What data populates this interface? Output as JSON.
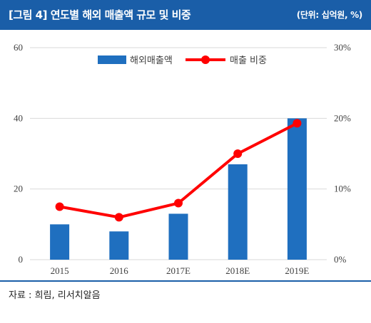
{
  "header": {
    "title": "[그림 4] 연도별 해외 매출액 규모 및 비중",
    "unit": "(단위: 십억원, %)"
  },
  "footer": {
    "source": "자료 : 희림, 리서치알음"
  },
  "colors": {
    "header_bg": "#1a5ea8",
    "bar": "#1f6fbf",
    "line": "#ff0000",
    "grid": "#d9d9d9"
  },
  "chart_data": {
    "type": "bar",
    "categories": [
      "2015",
      "2016",
      "2017E",
      "2018E",
      "2019E"
    ],
    "series": [
      {
        "name": "해외매출액",
        "type": "bar",
        "axis": "left",
        "values": [
          10,
          8,
          13,
          27,
          40
        ]
      },
      {
        "name": "매출 비중",
        "type": "line",
        "axis": "right",
        "values": [
          7.5,
          6.0,
          8.0,
          15.0,
          19.3
        ]
      }
    ],
    "left_axis": {
      "ylim": [
        0,
        60
      ],
      "ticks": [
        0,
        20,
        40,
        60
      ],
      "tick_labels": [
        "0",
        "20",
        "40",
        "60"
      ]
    },
    "right_axis": {
      "ylim": [
        0,
        30
      ],
      "ticks": [
        0,
        10,
        20,
        30
      ],
      "tick_labels": [
        "0%",
        "10%",
        "20%",
        "30%"
      ]
    },
    "grid": true,
    "legend_position": "top-center"
  }
}
